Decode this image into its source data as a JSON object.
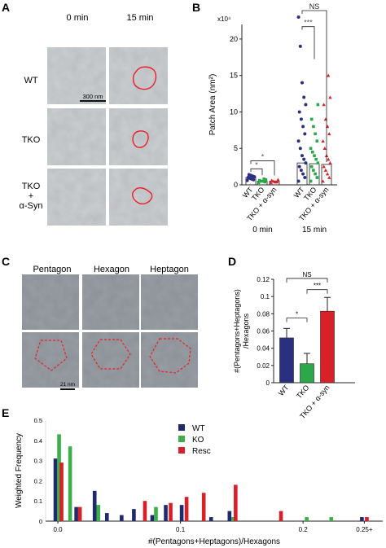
{
  "panels": {
    "A": {
      "letter": "A",
      "col_labels": [
        "0 min",
        "15 min"
      ],
      "row_labels": [
        "WT",
        "TKO",
        "TKO\n+\nα-Syn"
      ],
      "scale_bar": "300 nm",
      "colors": {
        "outline": "#e8202a",
        "micrograph": "#b9bdc0"
      }
    },
    "B": {
      "letter": "B"
    },
    "C": {
      "letter": "C",
      "col_labels": [
        "Pentagon",
        "Hexagon",
        "Heptagon"
      ],
      "scale_bar": "21 nm",
      "colors": {
        "dashed": "#e8202a",
        "micrograph": "#8a9096"
      }
    },
    "D": {
      "letter": "D"
    },
    "E": {
      "letter": "E"
    }
  },
  "chart_data": [
    {
      "id": "B",
      "type": "bar",
      "ylabel": "Patch Area (nm²)",
      "y_multiplier": "x10⁴",
      "ylim": [
        0,
        22
      ],
      "yticks": [
        0,
        5,
        10,
        15,
        20
      ],
      "groups": [
        {
          "label": "0 min",
          "categories": [
            "WT",
            "TKO",
            "TKO + α-syn"
          ],
          "means": [
            1.0,
            0.5,
            0.5
          ],
          "points": [
            [
              0.6,
              0.7,
              0.8,
              0.9,
              1.0,
              1.1,
              1.2,
              1.3,
              1.4
            ],
            [
              0.3,
              0.4,
              0.5,
              0.5,
              0.6,
              0.7,
              0.8
            ],
            [
              0.3,
              0.4,
              0.4,
              0.5,
              0.6,
              0.7
            ]
          ]
        },
        {
          "label": "15 min",
          "categories": [
            "WT",
            "TKO",
            "TKO + α-syn"
          ],
          "means": [
            3.0,
            2.9,
            2.8
          ],
          "points": [
            [
              0.5,
              1,
              1.5,
              2,
              2.5,
              3,
              3.5,
              4,
              5,
              6,
              7,
              8,
              9,
              10,
              11,
              12,
              14,
              19,
              23
            ],
            [
              0.5,
              1,
              1.5,
              2,
              2.5,
              3,
              3.5,
              4,
              4.5,
              5,
              6,
              7,
              8,
              9,
              11
            ],
            [
              0.5,
              1,
              1.5,
              2,
              2.5,
              3,
              3.5,
              4,
              5,
              6,
              7,
              8,
              9,
              11,
              12,
              15
            ]
          ]
        }
      ],
      "series_colors": [
        "#2b2f7f",
        "#2aa84a",
        "#d72027"
      ],
      "significance": [
        {
          "text": "*",
          "group": 0,
          "from": 0,
          "to": 1
        },
        {
          "text": "*",
          "group": 0,
          "from": 0,
          "to": 2
        },
        {
          "text": "***",
          "group": 1,
          "from": 0,
          "to": 1
        },
        {
          "text": "NS",
          "group": 1,
          "from": 0,
          "to": 2
        }
      ]
    },
    {
      "id": "D",
      "type": "bar",
      "ylabel": "#(Pentagons+Heptagons)\n/Hexagons",
      "ylim": [
        0,
        0.12
      ],
      "yticks": [
        0,
        0.02,
        0.04,
        0.06,
        0.08,
        0.1,
        0.12
      ],
      "categories": [
        "WT",
        "TKO",
        "TKO + α-syn"
      ],
      "values": [
        0.052,
        0.022,
        0.083
      ],
      "errors": [
        0.011,
        0.012,
        0.016
      ],
      "colors": [
        "#2b2f7f",
        "#2aa84a",
        "#d72027"
      ],
      "significance": [
        {
          "text": "*",
          "from": 0,
          "to": 1
        },
        {
          "text": "***",
          "from": 1,
          "to": 2
        },
        {
          "text": "NS",
          "from": 0,
          "to": 2
        }
      ]
    },
    {
      "id": "E",
      "type": "bar",
      "xlabel": "#(Pentagons+Heptagons)/Hexagons",
      "ylabel": "Weighted Frequency",
      "xlim": [
        -0.01,
        0.265
      ],
      "ylim": [
        0,
        0.5
      ],
      "yticks": [
        0,
        0.1,
        0.2,
        0.3,
        0.4,
        0.5
      ],
      "xticks": [
        {
          "v": 0,
          "label": "0.0"
        },
        {
          "v": 0.1,
          "label": "0.1"
        },
        {
          "v": 0.2,
          "label": "0.2"
        },
        {
          "v": 0.25,
          "label": "0.25+"
        }
      ],
      "legend": "top-right",
      "series": [
        {
          "name": "WT",
          "color": "#1f2a6e",
          "x": [
            -0.002,
            0.015,
            0.03,
            0.04,
            0.052,
            0.062,
            0.077,
            0.088,
            0.101,
            0.125,
            0.14,
            0.248
          ],
          "y": [
            0.31,
            0.07,
            0.15,
            0.04,
            0.03,
            0.06,
            0.03,
            0.08,
            0.08,
            0.02,
            0.05,
            0.02
          ]
        },
        {
          "name": "KO",
          "color": "#3cae4a",
          "x": [
            0.001,
            0.01,
            0.033,
            0.08,
            0.143,
            0.203,
            0.223
          ],
          "y": [
            0.43,
            0.37,
            0.08,
            0.07,
            0.02,
            0.02,
            0.02
          ]
        },
        {
          "name": "Resc",
          "color": "#d72027",
          "x": [
            0.003,
            0.018,
            0.071,
            0.092,
            0.105,
            0.119,
            0.145,
            0.182,
            0.252
          ],
          "y": [
            0.29,
            0.07,
            0.1,
            0.09,
            0.12,
            0.14,
            0.18,
            0.05,
            0.02
          ]
        }
      ]
    }
  ]
}
